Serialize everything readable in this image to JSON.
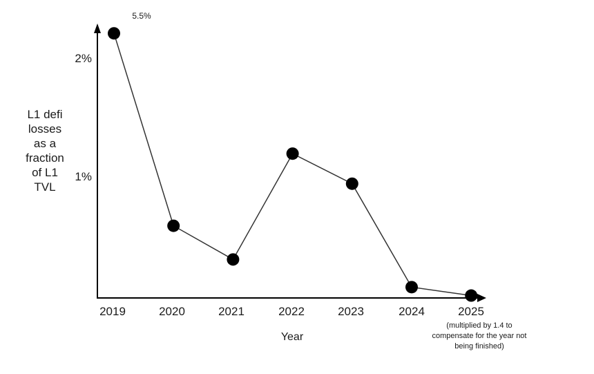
{
  "chart_data": {
    "type": "line",
    "title": "",
    "x_categories": [
      "2019",
      "2020",
      "2021",
      "2022",
      "2023",
      "2024",
      "2025"
    ],
    "values_pct": [
      5.5,
      0.6,
      0.32,
      1.2,
      0.95,
      0.09,
      0.02
    ],
    "plotted_pct": [
      2.2,
      0.6,
      0.32,
      1.2,
      0.95,
      0.09,
      0.02
    ],
    "clip_note": "2019 point drawn clipped at top of axis, true value labeled 5.5%",
    "yticks": [
      {
        "value": 1,
        "label": "1%"
      },
      {
        "value": 2,
        "label": "2%"
      }
    ],
    "ylim": [
      0,
      2.3
    ],
    "grid": false,
    "legend": "none",
    "ylabel": "L1 defi\nlosses\nas a\nfraction\nof L1\nTVL",
    "xlabel": "Year",
    "peak_annotation": "5.5%",
    "footnote": "(multiplied by 1.4 to\ncompensate for the year not\nbeing finished)",
    "line_color": "#333333",
    "point_color": "#000000",
    "axis_color": "#000000",
    "text_color": "#1a1a1a",
    "background_color": "#ffffff"
  }
}
